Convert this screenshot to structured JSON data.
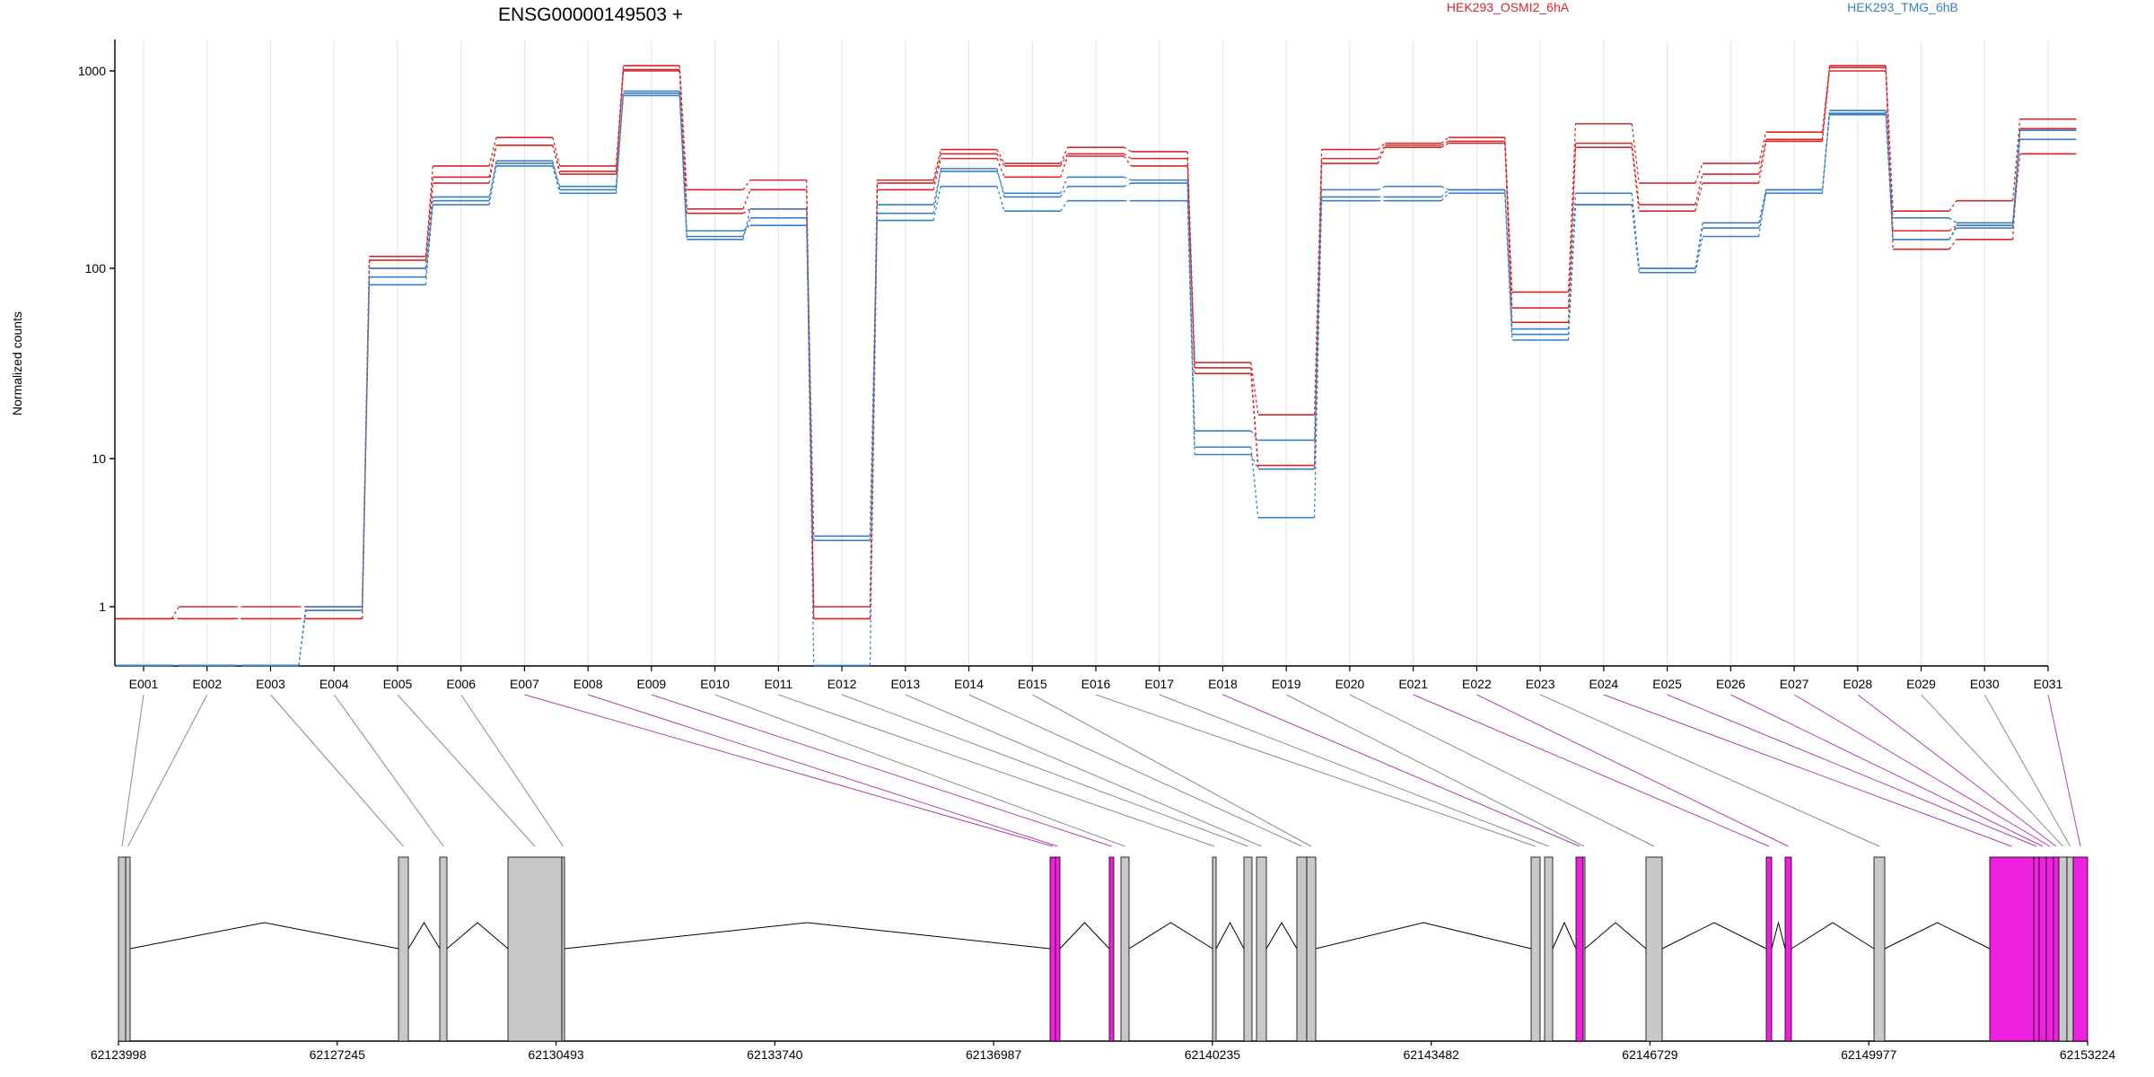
{
  "chart_data": {
    "type": "line",
    "title": "ENSG00000149503 +",
    "ylabel": "Normalized counts",
    "yscale": "log",
    "ylim": [
      0.5,
      1600
    ],
    "yticks": [
      1,
      10,
      100,
      1000
    ],
    "ytick_labels": [
      "1",
      "10",
      "100",
      "1000"
    ],
    "grid": "vertical, light",
    "legend_placement": "top",
    "categories": [
      "E001",
      "E002",
      "E003",
      "E004",
      "E005",
      "E006",
      "E007",
      "E008",
      "E009",
      "E010",
      "E011",
      "E012",
      "E013",
      "E014",
      "E015",
      "E016",
      "E017",
      "E018",
      "E019",
      "E020",
      "E021",
      "E022",
      "E023",
      "E024",
      "E025",
      "E026",
      "E027",
      "E028",
      "E029",
      "E030",
      "E031"
    ],
    "legend": [
      {
        "label": "HEK293_OSMI2_6hA",
        "color": "#d62728"
      },
      {
        "label": "HEK293_TMG_6hB",
        "color": "#3a7fc1"
      }
    ],
    "series": [
      {
        "group": "HEK293_OSMI2_6hA",
        "color": "#d62728",
        "values": [
          0.85,
          1,
          1,
          1,
          115,
          290,
          420,
          310,
          1000,
          190,
          200,
          0.85,
          250,
          360,
          290,
          370,
          330,
          28,
          8.5,
          340,
          410,
          430,
          52,
          410,
          195,
          270,
          440,
          1000,
          155,
          165,
          380
        ]
      },
      {
        "group": "HEK293_OSMI2_6hA",
        "color": "#d62728",
        "values": [
          0.85,
          0.85,
          0.85,
          0.85,
          110,
          330,
          460,
          330,
          1080,
          250,
          280,
          1,
          280,
          400,
          340,
          410,
          390,
          32,
          17,
          400,
          430,
          460,
          75,
          540,
          270,
          340,
          490,
          1080,
          195,
          220,
          570
        ]
      },
      {
        "group": "HEK293_OSMI2_6hA",
        "color": "#d62728",
        "values": [
          0.85,
          0.85,
          0.85,
          0.85,
          100,
          270,
          420,
          300,
          1020,
          200,
          250,
          0.85,
          270,
          380,
          330,
          380,
          360,
          30,
          9,
          360,
          420,
          440,
          62,
          430,
          210,
          300,
          450,
          1050,
          125,
          140,
          510
        ]
      },
      {
        "group": "HEK293_TMG_6hB",
        "color": "#3a7fc1",
        "values": [
          0.45,
          0.45,
          0.45,
          1,
          100,
          230,
          340,
          260,
          750,
          140,
          200,
          3,
          210,
          310,
          240,
          290,
          280,
          14,
          12.5,
          250,
          260,
          250,
          48,
          240,
          100,
          170,
          250,
          630,
          180,
          170,
          500
        ]
      },
      {
        "group": "HEK293_TMG_6hB",
        "color": "#3a7fc1",
        "values": [
          0.45,
          0.45,
          0.45,
          0.95,
          82,
          210,
          330,
          240,
          790,
          155,
          165,
          2.8,
          175,
          260,
          195,
          220,
          220,
          11.5,
          4,
          230,
          230,
          250,
          42,
          210,
          95,
          145,
          250,
          600,
          140,
          165,
          500
        ]
      },
      {
        "group": "HEK293_TMG_6hB",
        "color": "#3a7fc1",
        "values": [
          0.45,
          0.45,
          0.45,
          0.95,
          90,
          220,
          350,
          250,
          770,
          145,
          180,
          0.45,
          190,
          320,
          230,
          260,
          270,
          10.5,
          8.5,
          220,
          220,
          240,
          45,
          210,
          100,
          160,
          240,
          610,
          140,
          160,
          450
        ]
      }
    ],
    "exon_highlight": [
      false,
      false,
      false,
      false,
      false,
      false,
      true,
      true,
      true,
      false,
      false,
      false,
      false,
      false,
      false,
      false,
      false,
      true,
      false,
      false,
      true,
      true,
      false,
      true,
      true,
      true,
      true,
      true,
      false,
      false,
      true
    ],
    "genomic_axis_labels": [
      "62123998",
      "62127245",
      "62130493",
      "62133740",
      "62136987",
      "62140235",
      "62143482",
      "62146729",
      "62149977",
      "62153224"
    ],
    "genomic_range": [
      62123998,
      62153224
    ],
    "highlight_color": "#f020e0"
  }
}
